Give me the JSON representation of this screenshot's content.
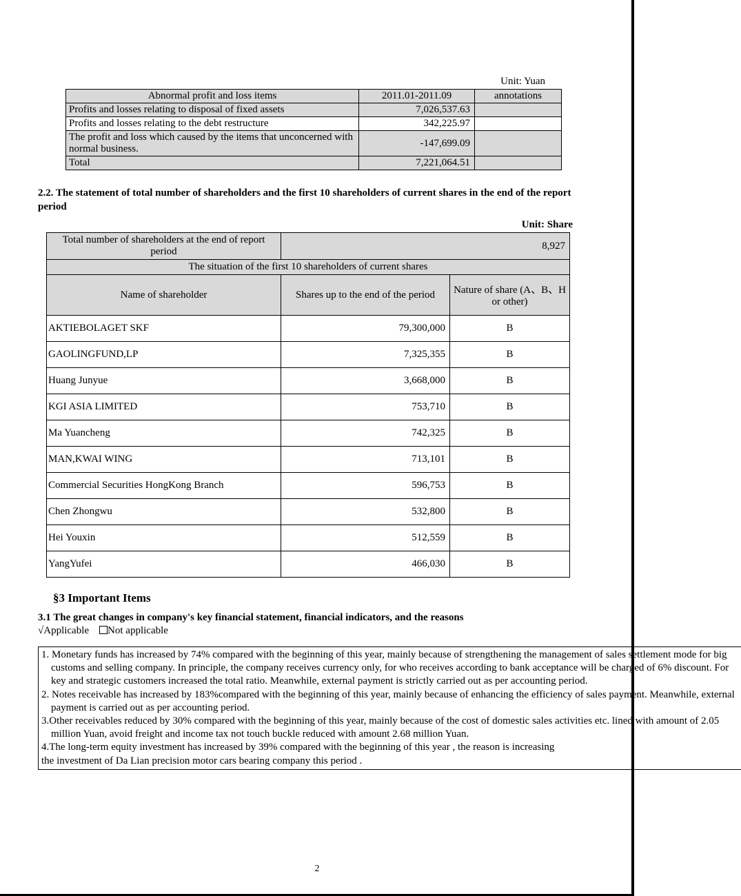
{
  "unit1": "Unit:  Yuan",
  "table1": {
    "headers": {
      "items": "Abnormal profit and loss items",
      "period": "2011.01-2011.09",
      "annot": "annotations"
    },
    "rows": [
      {
        "label": "Profits and losses relating to disposal of fixed assets",
        "value": "7,026,537.63",
        "annot": "",
        "gray": true
      },
      {
        "label": "Profits and losses relating to the debt restructure",
        "value": "342,225.97",
        "annot": "",
        "gray": false
      },
      {
        "label": "The profit and loss which caused by the items that unconcerned with normal business.",
        "value": "-147,699.09",
        "annot": "",
        "gray": true
      },
      {
        "label": "Total",
        "value": "7,221,064.51",
        "annot": "",
        "gray": true
      }
    ]
  },
  "section22": "2.2. The statement of total number of shareholders and the first 10 shareholders of current shares in the end of the report period",
  "unit2": "Unit:  Share",
  "table2": {
    "total_label": "Total number of shareholders at the end of report period",
    "total_value": "8,927",
    "situation": "The situation of the first 10 shareholders of current shares",
    "col_name": "Name of shareholder",
    "col_shares": "Shares up to the end of the period",
    "col_nature": "Nature of share (A、B、H  or other)",
    "rows": [
      {
        "name": "AKTIEBOLAGET  SKF",
        "shares": "79,300,000",
        "nature": "B"
      },
      {
        "name": "GAOLINGFUND,LP",
        "shares": "7,325,355",
        "nature": "B"
      },
      {
        "name": "Huang  Junyue",
        "shares": "3,668,000",
        "nature": "B"
      },
      {
        "name": "KGI ASIA  LIMITED",
        "shares": "753,710",
        "nature": "B"
      },
      {
        "name": "Ma Yuancheng",
        "shares": "742,325",
        "nature": "B"
      },
      {
        "name": "MAN,KWAI  WING",
        "shares": "713,101",
        "nature": "B"
      },
      {
        "name": "Commercial Securities HongKong Branch",
        "shares": "596,753",
        "nature": "B"
      },
      {
        "name": "Chen Zhongwu",
        "shares": "532,800",
        "nature": "B"
      },
      {
        "name": "Hei Youxin",
        "shares": "512,559",
        "nature": "B"
      },
      {
        "name": "YangYufei",
        "shares": "466,030",
        "nature": "B"
      }
    ]
  },
  "section3": "§3 Important Items",
  "sub31": "3.1 The great changes in company's key financial statement, financial indicators, and the reasons",
  "applicable": "√Applicable",
  "not_applicable": "Not applicable",
  "notes": {
    "n1": "1. Monetary funds has increased by 74% compared with the beginning of this year, mainly because of strengthening the management of sales settlement mode for big customs and selling company. In principle, the company receives currency only, for who receives according to bank acceptance will be charged of 6% discount. For key and strategic customers increased the total ratio. Meanwhile, external payment is strictly carried out as per accounting period.",
    "n2": "2. Notes receivable has increased by 183%compared with the beginning of this year, mainly because of enhancing the efficiency of sales payment. Meanwhile, external payment is carried out as per accounting period.",
    "n3": "3.Other receivables reduced by 30% compared with the beginning of this year, mainly because of the cost of domestic sales activities etc. lined with amount of 2.05 million Yuan, avoid freight and income tax not touch buckle reduced with amount 2.68 million Yuan.",
    "n4": "4.The long-term equity investment has increased by 39% compared with the beginning of this year , the reason is increasing",
    "n4b": "the investment of Da Lian precision motor cars bearing company this period ."
  },
  "page_number": "2",
  "colors": {
    "gray": "#d9d9d9",
    "border": "#000000",
    "background": "#ffffff",
    "text": "#000000"
  }
}
